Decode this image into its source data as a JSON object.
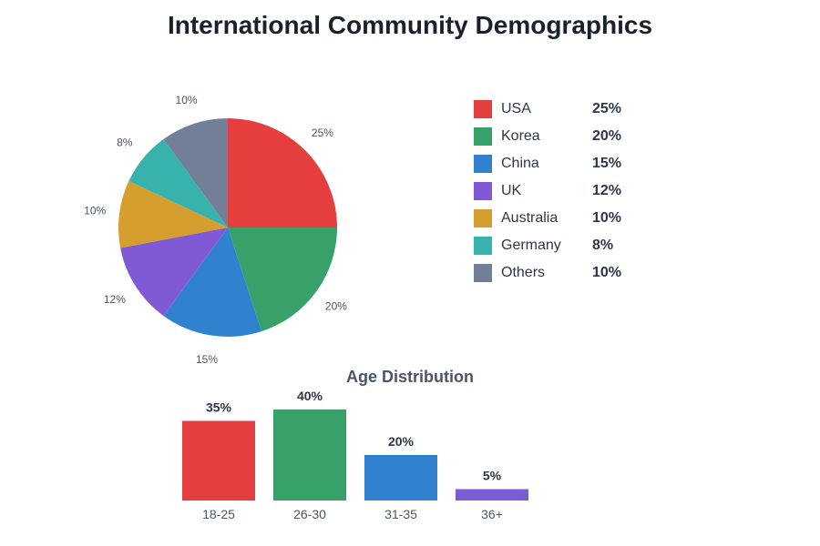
{
  "title": "International Community Demographics",
  "legend": [
    {
      "name": "USA",
      "value": "25%",
      "color": "#e53e3e"
    },
    {
      "name": "Korea",
      "value": "20%",
      "color": "#38a169"
    },
    {
      "name": "China",
      "value": "15%",
      "color": "#3182ce"
    },
    {
      "name": "UK",
      "value": "12%",
      "color": "#805ad5"
    },
    {
      "name": "Australia",
      "value": "10%",
      "color": "#d69e2e"
    },
    {
      "name": "Germany",
      "value": "8%",
      "color": "#38b2ac"
    },
    {
      "name": "Others",
      "value": "10%",
      "color": "#718096"
    }
  ],
  "age": {
    "title": "Age Distribution"
  },
  "chart_data": [
    {
      "type": "pie",
      "title": "International Community Demographics",
      "categories": [
        "USA",
        "Korea",
        "China",
        "UK",
        "Australia",
        "Germany",
        "Others"
      ],
      "values": [
        25,
        20,
        15,
        12,
        10,
        8,
        10
      ],
      "colors": [
        "#e53e3e",
        "#38a169",
        "#3182ce",
        "#805ad5",
        "#d69e2e",
        "#38b2ac",
        "#718096"
      ],
      "labels": [
        "25%",
        "20%",
        "15%",
        "12%",
        "10%",
        "8%",
        "10%"
      ],
      "legend_position": "right"
    },
    {
      "type": "bar",
      "title": "Age Distribution",
      "categories": [
        "18-25",
        "26-30",
        "31-35",
        "36+"
      ],
      "values": [
        35,
        40,
        20,
        5
      ],
      "labels": [
        "35%",
        "40%",
        "20%",
        "5%"
      ],
      "colors": [
        "#e53e3e",
        "#38a169",
        "#3182ce",
        "#805ad5"
      ],
      "xlabel": "",
      "ylabel": "",
      "grid": false
    }
  ]
}
